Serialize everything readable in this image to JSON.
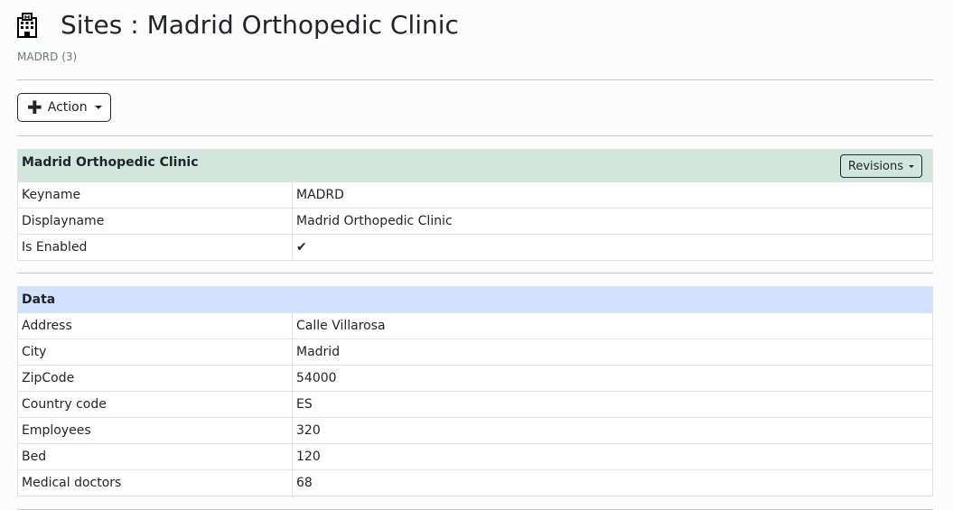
{
  "header": {
    "title": "Sites : Madrid Orthopedic Clinic",
    "subtitle": "MADRD (3)",
    "icon": "hospital-icon"
  },
  "toolbar": {
    "action_label": "Action"
  },
  "site_panel": {
    "title": "Madrid Orthopedic Clinic",
    "revisions_label": "Revisions",
    "header_color": "#d1e7dd",
    "rows": [
      {
        "label": "Keyname",
        "value": "MADRD"
      },
      {
        "label": "Displayname",
        "value": "Madrid Orthopedic Clinic"
      },
      {
        "label": "Is Enabled",
        "value": "✔"
      }
    ]
  },
  "data_panel": {
    "title": "Data",
    "header_color": "#cfe2ff",
    "rows": [
      {
        "label": "Address",
        "value": "Calle Villarosa"
      },
      {
        "label": "City",
        "value": "Madrid"
      },
      {
        "label": "ZipCode",
        "value": "54000"
      },
      {
        "label": "Country code",
        "value": "ES"
      },
      {
        "label": "Employees",
        "value": "320"
      },
      {
        "label": "Bed",
        "value": "120"
      },
      {
        "label": "Medical doctors",
        "value": "68"
      }
    ]
  }
}
